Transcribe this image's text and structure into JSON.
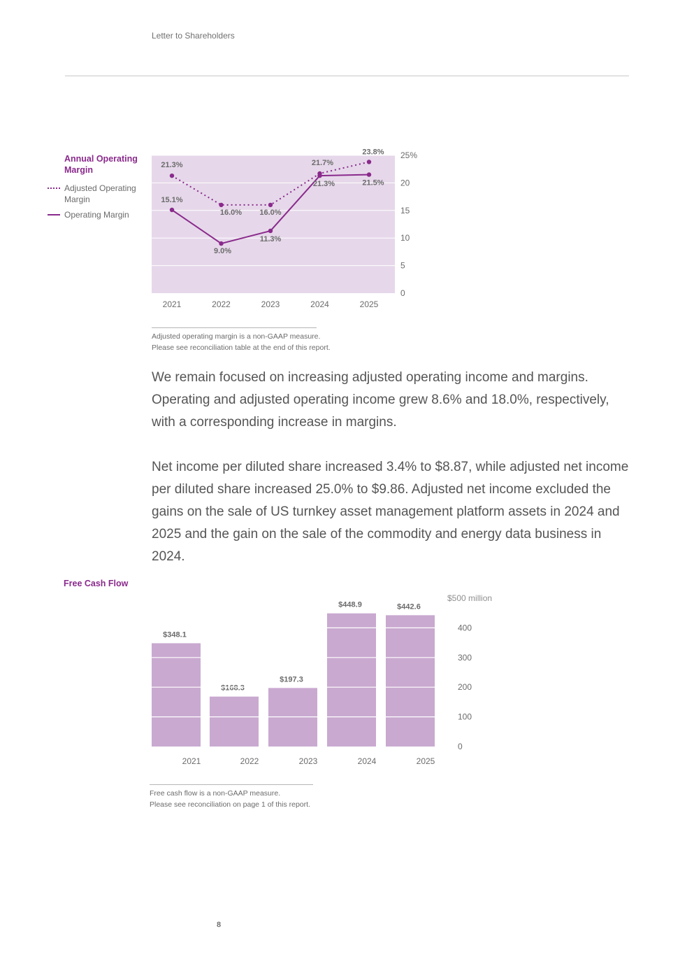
{
  "header": {
    "section_title": "Letter to Shareholders"
  },
  "margin_chart": {
    "legend_title": "Annual Operating Margin",
    "legend": [
      {
        "style": "dotted",
        "label": "Adjusted Operating Margin"
      },
      {
        "style": "solid",
        "label": "Operating Margin"
      }
    ],
    "footnote_line1": "Adjusted operating margin is a non-GAAP measure.",
    "footnote_line2": "Please see reconciliation table at the end of this report."
  },
  "paragraphs": {
    "p1": "We remain focused on increasing adjusted operating income and margins. Operating and adjusted operating income grew 8.6% and 18.0%, respectively, with a corresponding increase in margins.",
    "p2": "Net income per diluted share increased 3.4% to $8.87, while adjusted net income per diluted share increased 25.0% to $9.86. Adjusted net income excluded the gains on the sale of US turnkey asset management platform assets in 2024 and 2025 and the gain on the sale of the commodity and energy data business in 2024."
  },
  "fcf_chart": {
    "title": "Free Cash Flow",
    "footnote_line1": "Free cash flow is a non-GAAP measure.",
    "footnote_line2": "Please see reconciliation on page 1 of this report."
  },
  "page_number": "8",
  "colors": {
    "accent": "#8a2a8c",
    "plot_bg": "#e6d8ea",
    "bar": "#c9a9d0"
  },
  "chart_data": [
    {
      "type": "line",
      "title": "Annual Operating Margin",
      "x": [
        "2021",
        "2022",
        "2023",
        "2024",
        "2025"
      ],
      "series": [
        {
          "name": "Adjusted Operating Margin",
          "style": "dotted",
          "values": [
            21.3,
            16.0,
            16.0,
            21.7,
            23.8
          ],
          "labels": [
            "21.3%",
            "16.0%",
            "16.0%",
            "21.7%",
            "23.8%"
          ]
        },
        {
          "name": "Operating Margin",
          "style": "solid",
          "values": [
            15.1,
            9.0,
            11.3,
            21.3,
            21.5
          ],
          "labels": [
            "15.1%",
            "9.0%",
            "11.3%",
            "21.3%",
            "21.5%"
          ]
        }
      ],
      "ylim": [
        0,
        25
      ],
      "yticks": [
        "0",
        "5",
        "10",
        "15",
        "20",
        "25%"
      ],
      "y_axis_side": "right",
      "grid": true
    },
    {
      "type": "bar",
      "title": "Free Cash Flow",
      "categories": [
        "2021",
        "2022",
        "2023",
        "2024",
        "2025"
      ],
      "values": [
        348.1,
        168.3,
        197.3,
        448.9,
        442.6
      ],
      "labels": [
        "$348.1",
        "$168.3",
        "$197.3",
        "$448.9",
        "$442.6"
      ],
      "ylim": [
        0,
        500
      ],
      "yticks": [
        "0",
        "100",
        "200",
        "300",
        "400",
        "$500 million"
      ],
      "y_axis_side": "right",
      "grid": true
    }
  ]
}
